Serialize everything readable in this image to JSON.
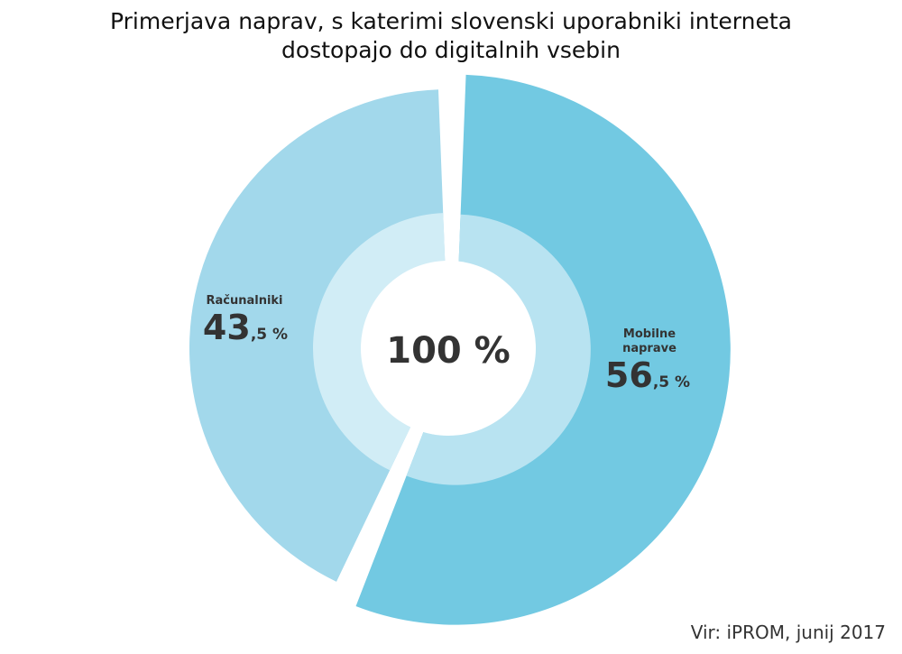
{
  "title_line1": "Primerjava naprav, s katerimi slovenski uporabniki interneta",
  "title_line2": "dostopajo do digitalnih vsebin",
  "source": "Vir: iPROM, junij 2017",
  "center_label": "100 %",
  "chart_data": {
    "type": "pie",
    "title": "Primerjava naprav, s katerimi slovenski uporabniki interneta dostopajo do digitalnih vsebin",
    "slices": [
      {
        "name": "Mobilne naprave",
        "label_line1": "Mobilne",
        "label_line2": "naprave",
        "value": 56.5,
        "value_int": "56",
        "value_dec": ",5 %",
        "color_outer": "#72c9e2",
        "color_inner": "#b8e3f1"
      },
      {
        "name": "Računalniki",
        "label_line1": "Računalniki",
        "label_line2": "",
        "value": 43.5,
        "value_int": "43",
        "value_dec": ",5 %",
        "color_outer": "#a2d8eb",
        "color_inner": "#d1edf6"
      }
    ],
    "total": 100
  }
}
